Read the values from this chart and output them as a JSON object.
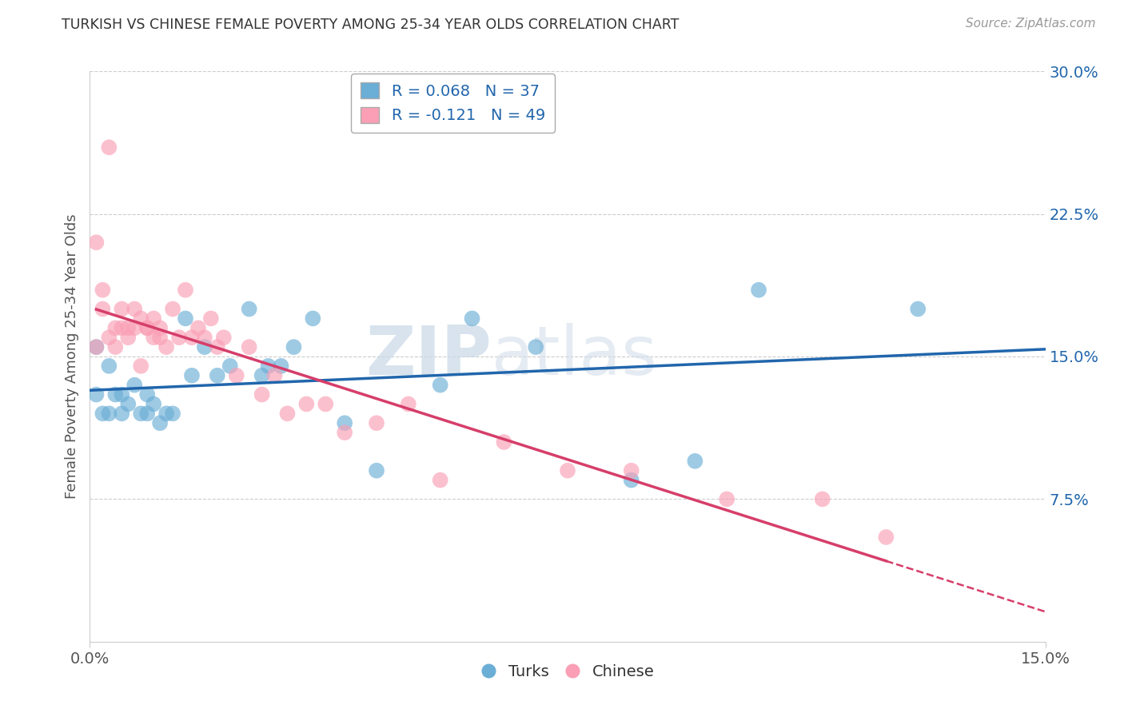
{
  "title": "TURKISH VS CHINESE FEMALE POVERTY AMONG 25-34 YEAR OLDS CORRELATION CHART",
  "source": "Source: ZipAtlas.com",
  "ylabel": "Female Poverty Among 25-34 Year Olds",
  "xlim": [
    0.0,
    0.15
  ],
  "ylim": [
    0.0,
    0.3
  ],
  "xticks": [
    0.0,
    0.15
  ],
  "xticklabels": [
    "0.0%",
    "15.0%"
  ],
  "yticks_right": [
    0.075,
    0.15,
    0.225,
    0.3
  ],
  "ytick_right_labels": [
    "7.5%",
    "15.0%",
    "22.5%",
    "30.0%"
  ],
  "turks_R": 0.068,
  "turks_N": 37,
  "chinese_R": -0.121,
  "chinese_N": 49,
  "turks_color": "#6baed6",
  "chinese_color": "#fa9fb5",
  "turks_line_color": "#2166ac",
  "chinese_line_color": "#d63e6a",
  "turks_x": [
    0.001,
    0.001,
    0.002,
    0.003,
    0.003,
    0.004,
    0.005,
    0.005,
    0.006,
    0.007,
    0.008,
    0.009,
    0.009,
    0.01,
    0.011,
    0.012,
    0.013,
    0.015,
    0.016,
    0.018,
    0.02,
    0.022,
    0.025,
    0.027,
    0.028,
    0.03,
    0.032,
    0.035,
    0.04,
    0.045,
    0.055,
    0.06,
    0.07,
    0.085,
    0.095,
    0.105,
    0.13
  ],
  "turks_y": [
    0.155,
    0.13,
    0.12,
    0.145,
    0.12,
    0.13,
    0.12,
    0.13,
    0.125,
    0.135,
    0.12,
    0.12,
    0.13,
    0.125,
    0.115,
    0.12,
    0.12,
    0.17,
    0.14,
    0.155,
    0.14,
    0.145,
    0.175,
    0.14,
    0.145,
    0.145,
    0.155,
    0.17,
    0.115,
    0.09,
    0.135,
    0.17,
    0.155,
    0.085,
    0.095,
    0.185,
    0.175
  ],
  "chinese_x": [
    0.001,
    0.001,
    0.002,
    0.002,
    0.003,
    0.003,
    0.004,
    0.004,
    0.005,
    0.005,
    0.006,
    0.006,
    0.007,
    0.007,
    0.008,
    0.008,
    0.009,
    0.009,
    0.01,
    0.01,
    0.011,
    0.011,
    0.012,
    0.013,
    0.014,
    0.015,
    0.016,
    0.017,
    0.018,
    0.019,
    0.02,
    0.021,
    0.023,
    0.025,
    0.027,
    0.029,
    0.031,
    0.034,
    0.037,
    0.04,
    0.045,
    0.05,
    0.055,
    0.065,
    0.075,
    0.085,
    0.1,
    0.115,
    0.125
  ],
  "chinese_y": [
    0.21,
    0.155,
    0.175,
    0.185,
    0.26,
    0.16,
    0.155,
    0.165,
    0.165,
    0.175,
    0.16,
    0.165,
    0.165,
    0.175,
    0.145,
    0.17,
    0.165,
    0.165,
    0.16,
    0.17,
    0.16,
    0.165,
    0.155,
    0.175,
    0.16,
    0.185,
    0.16,
    0.165,
    0.16,
    0.17,
    0.155,
    0.16,
    0.14,
    0.155,
    0.13,
    0.14,
    0.12,
    0.125,
    0.125,
    0.11,
    0.115,
    0.125,
    0.085,
    0.105,
    0.09,
    0.09,
    0.075,
    0.075,
    0.055
  ],
  "background_color": "#ffffff",
  "grid_color": "#cccccc",
  "title_color": "#333333",
  "axis_color": "#555555",
  "right_axis_color": "#2166ac"
}
